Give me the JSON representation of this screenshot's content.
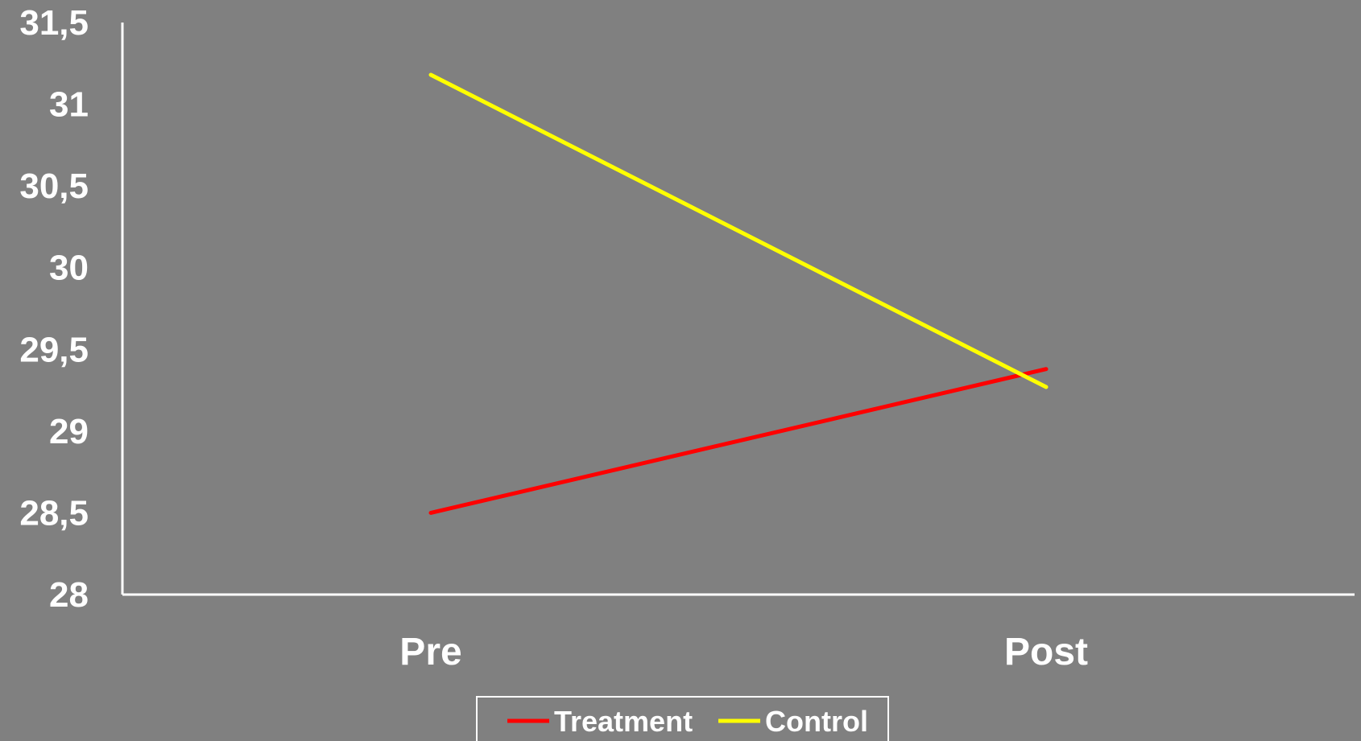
{
  "chart_data": {
    "type": "line",
    "title": "",
    "xlabel": "",
    "ylabel": "",
    "categories": [
      "Pre",
      "Post"
    ],
    "ylim": [
      28,
      31.5
    ],
    "yticks": [
      "28",
      "28,5",
      "29",
      "29,5",
      "30",
      "30,5",
      "31",
      "31,5"
    ],
    "ytick_values": [
      28,
      28.5,
      29,
      29.5,
      30,
      30.5,
      31,
      31.5
    ],
    "series": [
      {
        "name": "Treatment",
        "values": [
          28.5,
          29.38
        ],
        "color": "#ff0000"
      },
      {
        "name": "Control",
        "values": [
          31.18,
          29.27
        ],
        "color": "#ffff00"
      }
    ],
    "grid": false,
    "legend_position": "bottom",
    "background_color": "#808080",
    "axis_color": "#ffffff"
  }
}
